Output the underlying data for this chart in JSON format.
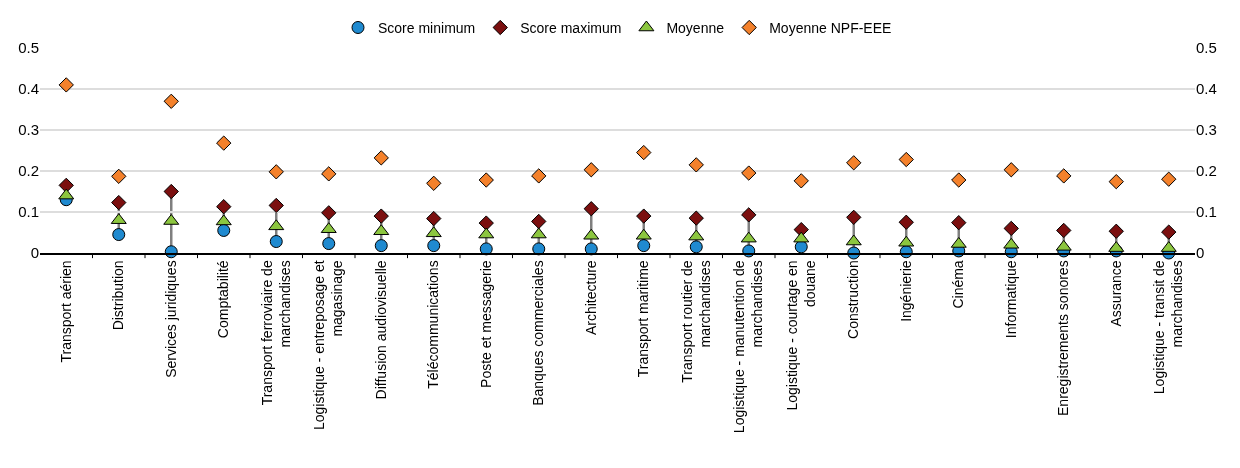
{
  "chart_data": {
    "type": "scatter",
    "categories": [
      "Transport aérien",
      "Distribution",
      "Services juridiques",
      "Comptabilité",
      "Transport ferroviaire de\nmarchandises",
      "Logistique - entreposage et\nmagasinage",
      "Diffusion audiovisuelle",
      "Télécommunications",
      "Poste et messagerie",
      "Banques commerciales",
      "Architecture",
      "Transport maritime",
      "Transport routier de\nmarchandises",
      "Logistique - manutention de\nmarchandises",
      "Logistique - courtage en\ndouane",
      "Construction",
      "Ingénierie",
      "Cinéma",
      "Informatique",
      "Enregistrements sonores",
      "Assurance",
      "Logistique - transit de\nmarchandises"
    ],
    "series": [
      {
        "name": "Score minimum",
        "color": "#1f8ad0",
        "marker": "circle",
        "values": [
          0.13,
          0.045,
          0.003,
          0.055,
          0.028,
          0.023,
          0.018,
          0.018,
          0.01,
          0.01,
          0.01,
          0.018,
          0.015,
          0.005,
          0.015,
          0.0,
          0.003,
          0.005,
          0.003,
          0.005,
          0.005,
          0.0
        ]
      },
      {
        "name": "Score maximum",
        "color": "#7b0f0f",
        "marker": "diamond",
        "values": [
          0.165,
          0.123,
          0.15,
          0.113,
          0.116,
          0.098,
          0.09,
          0.084,
          0.073,
          0.077,
          0.108,
          0.09,
          0.085,
          0.093,
          0.057,
          0.087,
          0.075,
          0.074,
          0.06,
          0.055,
          0.053,
          0.051
        ]
      },
      {
        "name": "Moyenne",
        "color": "#8cc63f",
        "marker": "triangle",
        "values": [
          0.14,
          0.08,
          0.078,
          0.077,
          0.065,
          0.058,
          0.053,
          0.048,
          0.045,
          0.045,
          0.042,
          0.042,
          0.04,
          0.035,
          0.035,
          0.028,
          0.025,
          0.022,
          0.02,
          0.015,
          0.012,
          0.012
        ]
      },
      {
        "name": "Moyenne NPF-EEE",
        "color": "#f4812b",
        "marker": "diamond",
        "values": [
          0.41,
          0.187,
          0.37,
          0.268,
          0.198,
          0.193,
          0.232,
          0.17,
          0.178,
          0.188,
          0.203,
          0.245,
          0.215,
          0.195,
          0.176,
          0.22,
          0.228,
          0.178,
          0.203,
          0.188,
          0.174,
          0.18
        ]
      }
    ],
    "ylim": [
      0,
      0.5
    ],
    "yticks": [
      0,
      0.1,
      0.2,
      0.3,
      0.4,
      0.5
    ],
    "y2lim": [
      0,
      0.5
    ],
    "y2ticks": [
      0,
      0.1,
      0.2,
      0.3,
      0.4,
      0.5
    ],
    "grid": "y",
    "legend": "top"
  }
}
